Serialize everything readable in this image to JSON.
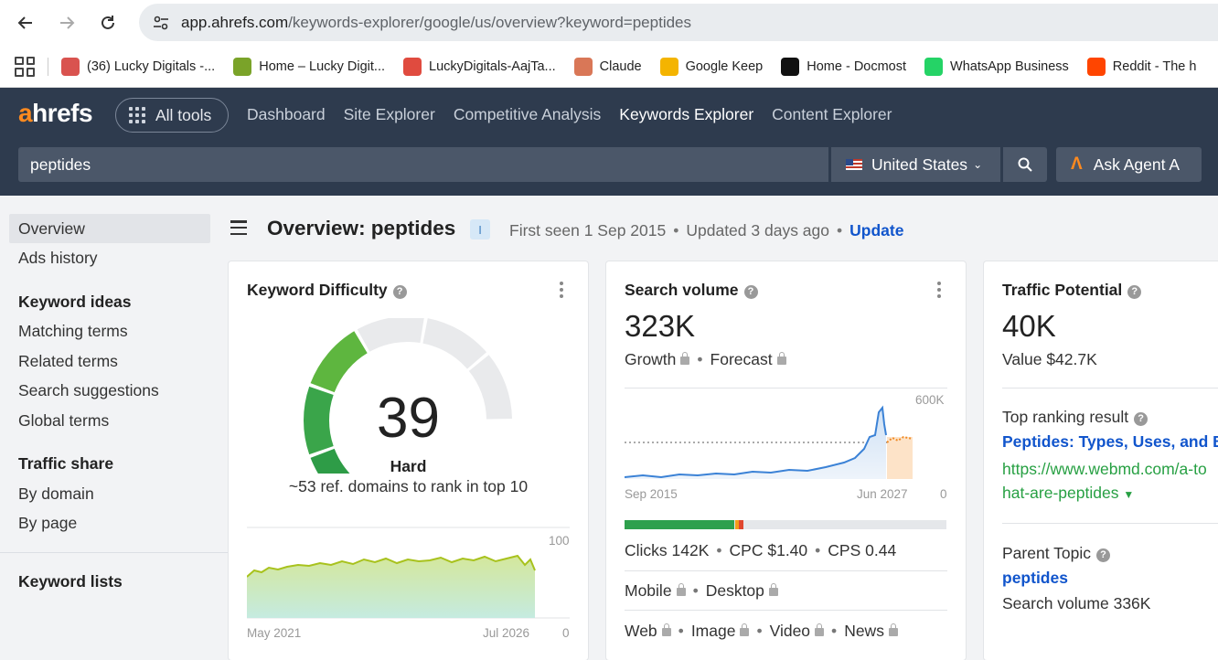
{
  "browser": {
    "url_host": "app.ahrefs.com",
    "url_path": "/keywords-explorer/google/us/overview?keyword=peptides",
    "bookmarks": [
      {
        "label": "(36) Lucky Digitals -...",
        "color": "#d9534f"
      },
      {
        "label": "Home – Lucky Digit...",
        "color": "#7aa329"
      },
      {
        "label": "LuckyDigitals-AajTa...",
        "color": "#e04b3f"
      },
      {
        "label": "Claude",
        "color": "#d97757"
      },
      {
        "label": "Google Keep",
        "color": "#f4b400"
      },
      {
        "label": "Home - Docmost",
        "color": "#111111"
      },
      {
        "label": "WhatsApp Business",
        "color": "#25d366"
      },
      {
        "label": "Reddit - The h",
        "color": "#ff4500"
      }
    ]
  },
  "header": {
    "logo_a": "a",
    "logo_rest": "hrefs",
    "all_tools": "All tools",
    "nav": [
      "Dashboard",
      "Site Explorer",
      "Competitive Analysis",
      "Keywords Explorer",
      "Content Explorer"
    ],
    "search_value": "peptides",
    "country": "United States",
    "agent_icon": "Λ",
    "agent_label": "Ask Agent A"
  },
  "sidebar": {
    "top": [
      "Overview",
      "Ads history"
    ],
    "keyword_ideas_head": "Keyword ideas",
    "keyword_ideas": [
      "Matching terms",
      "Related terms",
      "Search suggestions",
      "Global terms"
    ],
    "traffic_share_head": "Traffic share",
    "traffic_share": [
      "By domain",
      "By page"
    ],
    "keyword_lists": "Keyword lists"
  },
  "page": {
    "title": "Overview: peptides",
    "badge": "I",
    "first_seen": "First seen 1 Sep 2015",
    "updated": "Updated 3 days ago",
    "update_link": "Update"
  },
  "kd_card": {
    "title": "Keyword Difficulty",
    "value": "39",
    "value_num": 39,
    "label": "Hard",
    "sub": "~53 ref. domains to rank in top 10",
    "chart_start": "May 2021",
    "chart_end": "Jul 2026",
    "y_max": "100",
    "y_min": "0"
  },
  "sv_card": {
    "title": "Search volume",
    "value": "323K",
    "growth": "Growth",
    "forecast": "Forecast",
    "chart_start": "Sep 2015",
    "chart_end": "Jun 2027",
    "y_max": "600K",
    "y_min": "0",
    "clicks": "Clicks 142K",
    "cpc": "CPC $1.40",
    "cps": "CPS 0.44",
    "mobile": "Mobile",
    "desktop": "Desktop",
    "serp": [
      "Web",
      "Image",
      "Video",
      "News"
    ]
  },
  "tp_card": {
    "title": "Traffic Potential",
    "value": "40K",
    "value_line": "Value $42.7K",
    "top_result_head": "Top ranking result",
    "top_result_title": "Peptides: Types, Uses, and B",
    "top_result_url1": "https://www.webmd.com/a-to",
    "top_result_url2": "hat-are-peptides",
    "parent_head": "Parent Topic",
    "parent_link": "peptides",
    "parent_volume": "Search volume 336K"
  },
  "colors": {
    "header_bg": "#2e3b4e",
    "accent_orange": "#ff8a1f",
    "link_blue": "#1155cc",
    "url_green": "#27a043",
    "kd_green": "#3ba54a",
    "sv_line": "#3b82d6"
  }
}
